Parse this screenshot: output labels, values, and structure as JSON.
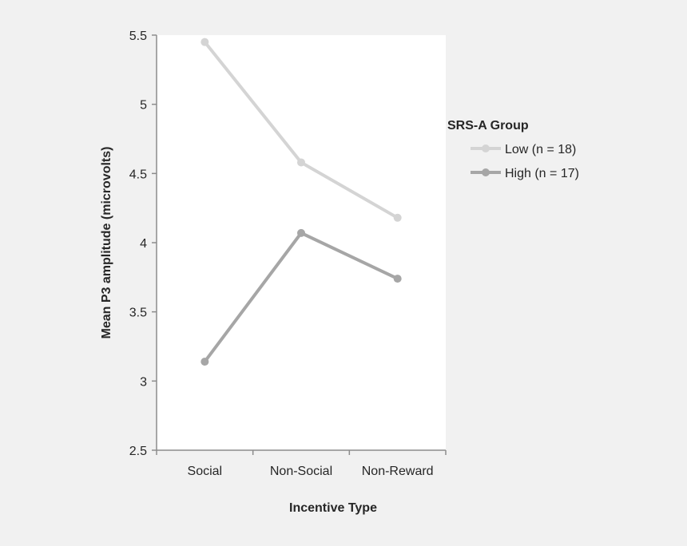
{
  "chart_data": {
    "type": "line",
    "categories": [
      "Social",
      "Non-Social",
      "Non-Reward"
    ],
    "series": [
      {
        "name": "Low (n = 18)",
        "values": [
          5.45,
          4.58,
          4.18
        ],
        "color": "#d4d4d4"
      },
      {
        "name": "High (n = 17)",
        "values": [
          3.14,
          4.07,
          3.74
        ],
        "color": "#a6a6a6"
      }
    ],
    "title": "",
    "xlabel": "Incentive Type",
    "ylabel": "Mean P3 amplitude  (microvolts)",
    "ylim": [
      2.5,
      5.5
    ],
    "yticks": [
      2.5,
      3,
      3.5,
      4,
      4.5,
      5,
      5.5
    ],
    "ytick_labels": [
      "2.5",
      "3",
      "3.5",
      "4",
      "4.5",
      "5",
      "5.5"
    ],
    "grid": false,
    "legend_title": "SRS-A Group",
    "legend_position": "right",
    "colors": {
      "plot_background": "#ffffff",
      "page_background": "#f1f1f1",
      "axis": "#8c8c8c",
      "text": "#262626"
    }
  }
}
